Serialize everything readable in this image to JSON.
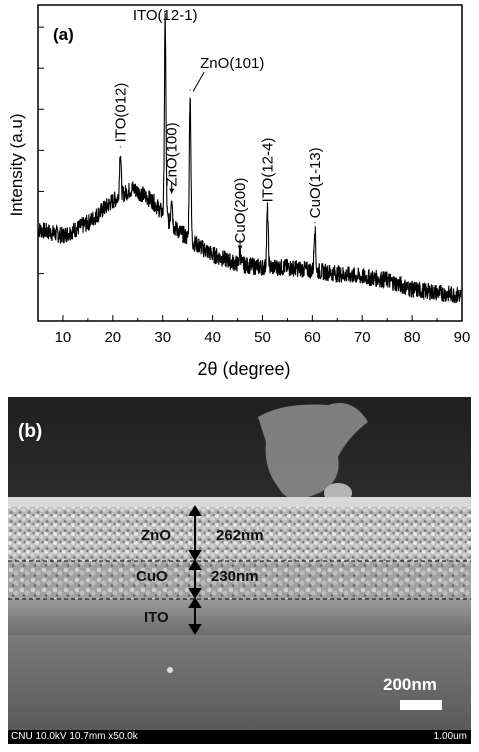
{
  "panel_a": {
    "label": "(a)",
    "ylabel": "Intensity (a.u)",
    "xlabel": "2θ (degree)"
  },
  "panel_b": {
    "label": "(b)",
    "layers": [
      {
        "name": "ZnO",
        "thickness": "262nm"
      },
      {
        "name": "CuO",
        "thickness": "230nm"
      },
      {
        "name": "ITO",
        "thickness": ""
      }
    ],
    "scale_bar_label": "200nm",
    "info_text": "CNU 10.0kV 10.7mm x50.0k",
    "info_scale": "1.00um"
  },
  "chart_data": {
    "type": "line",
    "title": "",
    "xlabel": "2θ (degree)",
    "ylabel": "Intensity (a.u)",
    "xlim": [
      5,
      90
    ],
    "ylim": [
      0,
      100
    ],
    "xticks": [
      "10",
      "20",
      "30",
      "40",
      "50",
      "60",
      "70",
      "80",
      "90"
    ],
    "grid": false,
    "baseline": [
      {
        "x": 5,
        "y": 29
      },
      {
        "x": 10,
        "y": 27
      },
      {
        "x": 15,
        "y": 31
      },
      {
        "x": 20,
        "y": 38
      },
      {
        "x": 24,
        "y": 42
      },
      {
        "x": 28,
        "y": 38
      },
      {
        "x": 32,
        "y": 30
      },
      {
        "x": 36,
        "y": 25
      },
      {
        "x": 40,
        "y": 21
      },
      {
        "x": 45,
        "y": 18
      },
      {
        "x": 50,
        "y": 17
      },
      {
        "x": 55,
        "y": 17
      },
      {
        "x": 60,
        "y": 16
      },
      {
        "x": 65,
        "y": 15
      },
      {
        "x": 70,
        "y": 14
      },
      {
        "x": 75,
        "y": 13
      },
      {
        "x": 80,
        "y": 10
      },
      {
        "x": 85,
        "y": 9
      },
      {
        "x": 90,
        "y": 8
      }
    ],
    "peaks": [
      {
        "x": 21.5,
        "y": 54,
        "label": "ITO(012)"
      },
      {
        "x": 30.5,
        "y": 96,
        "label": "ITO(12-1)"
      },
      {
        "x": 31.8,
        "y": 40,
        "label": "ZnO(100)"
      },
      {
        "x": 35.5,
        "y": 72,
        "label": "ZnO(101)"
      },
      {
        "x": 45.5,
        "y": 22,
        "label": "CuO(200)"
      },
      {
        "x": 51.0,
        "y": 35,
        "label": "ITO(12-4)"
      },
      {
        "x": 60.5,
        "y": 30,
        "label": "CuO(1-13)"
      }
    ]
  }
}
